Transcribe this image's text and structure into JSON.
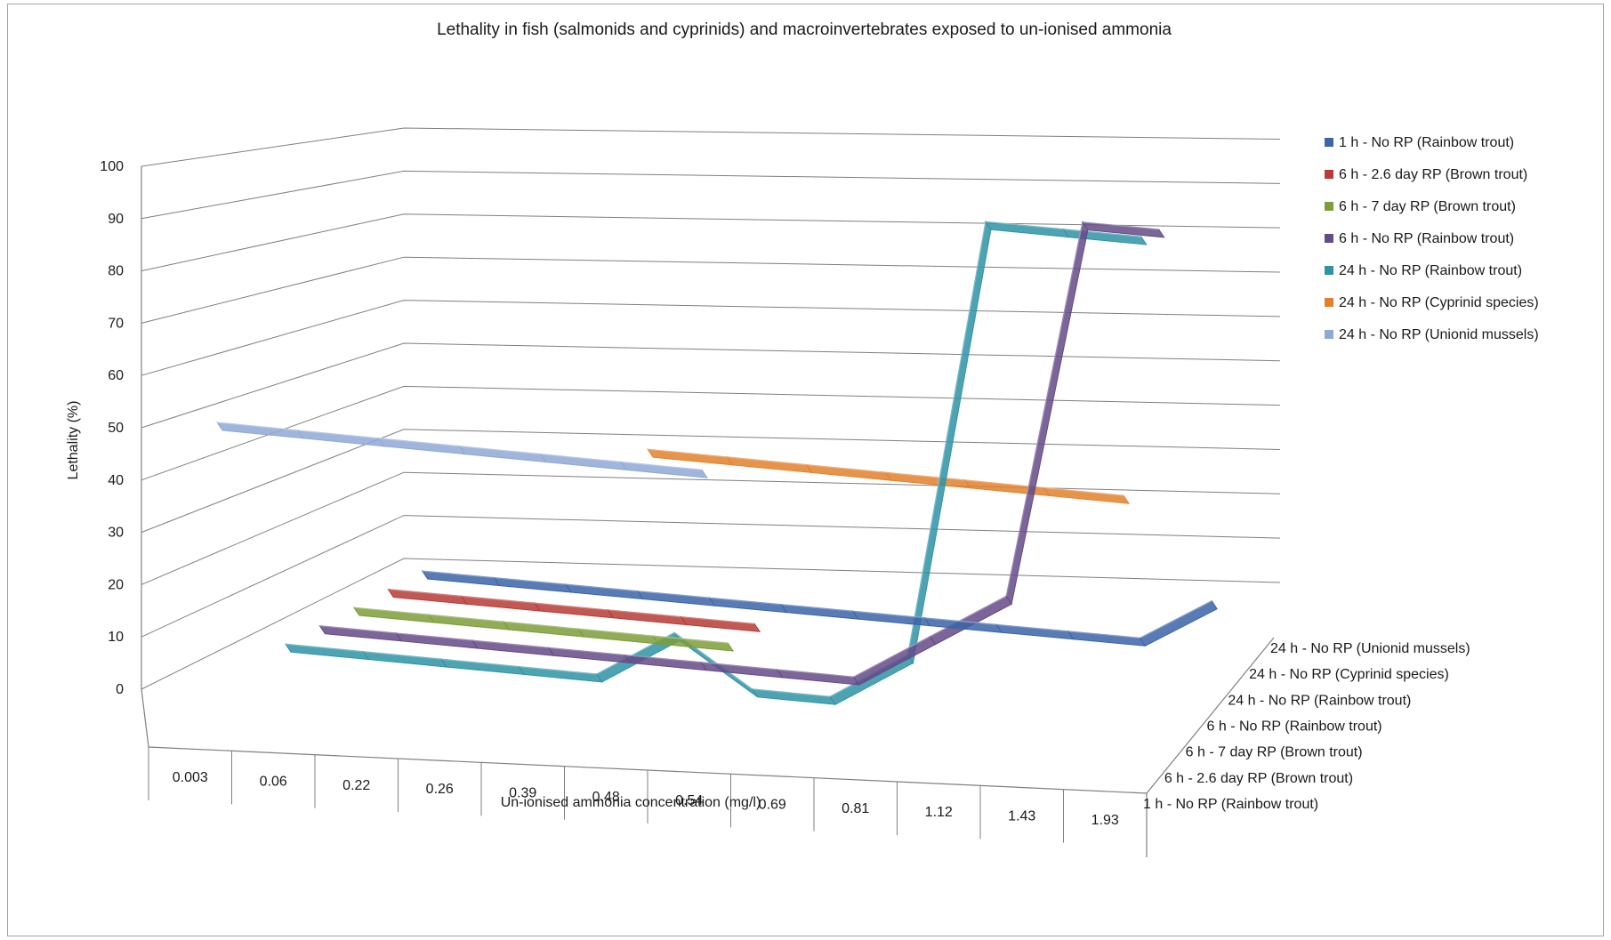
{
  "chart_data": {
    "type": "line",
    "subtype": "3d-line",
    "title": "Lethality in fish (salmonids and cyprinids) and macroinvertebrates exposed to un-ionised ammonia",
    "xlabel": "Un-ionised ammonia concentration (mg/l)",
    "ylabel": "Lethality (%)",
    "ylim": [
      0,
      100
    ],
    "yticks": [
      0,
      10,
      20,
      30,
      40,
      50,
      60,
      70,
      80,
      90,
      100
    ],
    "grid": true,
    "legend_position": "right",
    "categories": [
      "0.003",
      "0.06",
      "0.22",
      "0.26",
      "0.39",
      "0.48",
      "0.54",
      "0.69",
      "0.81",
      "1.12",
      "1.43",
      "1.93"
    ],
    "series": [
      {
        "name": "1 h - No RP (Rainbow trout)",
        "color": "#3c64a8",
        "values": [
          0,
          0,
          0,
          0,
          0,
          0,
          0,
          0,
          0,
          0,
          0,
          10
        ]
      },
      {
        "name": "6 h - 2.6 day RP (Brown trout)",
        "color": "#b73b36",
        "values": [
          0,
          0,
          0,
          0,
          0,
          0,
          null,
          null,
          null,
          null,
          null,
          null
        ]
      },
      {
        "name": "6 h - 7 day RP (Brown trout)",
        "color": "#7c9d3a",
        "values": [
          0,
          0,
          0,
          0,
          0,
          0,
          null,
          null,
          null,
          null,
          null,
          null
        ]
      },
      {
        "name": "6 h - No RP (Rainbow trout)",
        "color": "#644a87",
        "values": [
          0,
          0,
          0,
          0,
          0,
          0,
          0,
          0,
          10,
          20,
          100,
          100
        ]
      },
      {
        "name": "24 h - No RP (Rainbow trout)",
        "color": "#2f93a6",
        "values": [
          0,
          0,
          0,
          0,
          0,
          10,
          0,
          0,
          10,
          100,
          100,
          100
        ]
      },
      {
        "name": "24 h - No RP (Cyprinid species)",
        "color": "#e2812c",
        "values": [
          null,
          null,
          null,
          null,
          null,
          50,
          50,
          50,
          50,
          50,
          50,
          50
        ]
      },
      {
        "name": "24 h - No RP (Unionid mussels)",
        "color": "#8fa8d6",
        "values": [
          50,
          50,
          50,
          50,
          50,
          50,
          50,
          null,
          null,
          null,
          null,
          null
        ]
      }
    ],
    "depth_labels": [
      "24 h - No RP (Unionid mussels)",
      "24 h - No RP (Cyprinid species)",
      "24 h - No RP (Rainbow trout)",
      "6 h - No RP (Rainbow trout)",
      "6 h - 7 day RP (Brown trout)",
      "6 h - 2.6 day RP (Brown trout)",
      "1 h - No RP (Rainbow trout)"
    ],
    "colors": {
      "gridline": "#7f7f7f",
      "axis": "#808080",
      "frame": "#a6a6a6"
    }
  }
}
